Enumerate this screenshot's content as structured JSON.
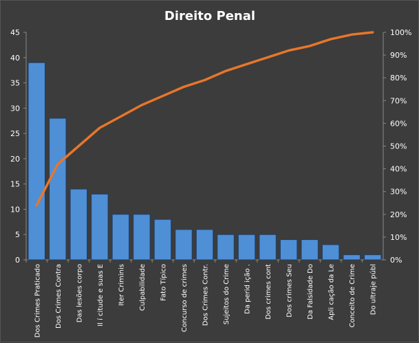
{
  "colors": {
    "background": "#3c3c3c",
    "bar_fill": "#4f8fd6",
    "bar_stroke": "#1e3f66",
    "line": "#e8762b",
    "text": "#ffffff",
    "axis": "#8a8a8a"
  },
  "chart_data": {
    "type": "bar",
    "title": "Direito  Penal",
    "categories": [
      "Dos Crimes Praticado",
      "Dos Crimes Contra",
      "Das lesões corpo",
      "Il í citude e suas E",
      "Iter Criminis",
      "Culpabilidade",
      "Fato Típico",
      "Concurso de crimes",
      "Dos Crimes Contr.",
      "Sujeitos do Crime",
      "Da perid ição .",
      "Dos crimes cont",
      "Dos crimes Seu",
      "Da Falsidade Do",
      "Apli cação da Le",
      "Conceito de Crime",
      "Do ultraje públ"
    ],
    "series": [
      {
        "type": "bar",
        "axis": "left",
        "values": [
          39,
          28,
          14,
          13,
          9,
          9,
          8,
          6,
          6,
          5,
          5,
          5,
          4,
          4,
          3,
          1,
          1
        ]
      },
      {
        "type": "line",
        "axis": "right",
        "values": [
          24,
          42,
          50,
          58,
          63,
          68,
          72,
          76,
          79,
          83,
          86,
          89,
          92,
          94,
          97,
          99,
          100
        ]
      }
    ],
    "ylim_left": [
      0,
      45
    ],
    "yticks_left": [
      "0",
      "5",
      "10",
      "15",
      "20",
      "25",
      "30",
      "35",
      "40",
      "45"
    ],
    "ylim_right": [
      0,
      100
    ],
    "yticks_right": [
      "0%",
      "10%",
      "20%",
      "30%",
      "40%",
      "50%",
      "60%",
      "70%",
      "80%",
      "90%",
      "100%"
    ],
    "grid": false,
    "legend": "none"
  }
}
